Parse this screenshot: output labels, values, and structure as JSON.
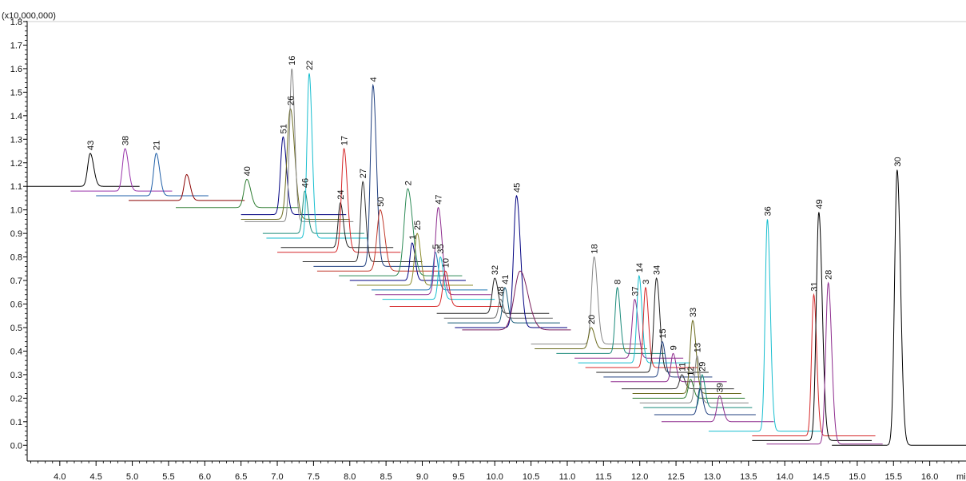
{
  "chart_data": {
    "type": "line",
    "title": "",
    "y_scale_label": "(x10,000,000)",
    "xlabel": "min",
    "ylabel": "",
    "xlim": [
      3.55,
      16.5
    ],
    "ylim": [
      -0.05,
      1.8
    ],
    "x_ticks": [
      4.0,
      4.5,
      5.0,
      5.5,
      6.0,
      6.5,
      7.0,
      7.5,
      8.0,
      8.5,
      9.0,
      9.5,
      10.0,
      10.5,
      11.0,
      11.5,
      12.0,
      12.5,
      13.0,
      13.5,
      14.0,
      14.5,
      15.0,
      15.5,
      16.0
    ],
    "x_tick_labels": [
      "4.0",
      "4.5",
      "5.0",
      "5.5",
      "6.0",
      "6.5",
      "7.0",
      "7.5",
      "8.0",
      "8.5",
      "9.0",
      "9.5",
      "10.0",
      "10.5",
      "11.0",
      "11.5",
      "12.0",
      "12.5",
      "13.0",
      "13.5",
      "14.0",
      "14.5",
      "15.0",
      "15.5",
      "16.0"
    ],
    "y_ticks": [
      0.0,
      0.1,
      0.2,
      0.3,
      0.4,
      0.5,
      0.6,
      0.7,
      0.8,
      0.9,
      1.0,
      1.1,
      1.2,
      1.3,
      1.4,
      1.5,
      1.6,
      1.7,
      1.8
    ],
    "y_tick_labels": [
      "0.0",
      "0.1",
      "0.2",
      "0.3",
      "0.4",
      "0.5",
      "0.6",
      "0.7",
      "0.8",
      "0.9",
      "1.0",
      "1.1",
      "1.2",
      "1.3",
      "1.4",
      "1.5",
      "1.6",
      "1.7",
      "1.8"
    ],
    "grid": false,
    "legend": "none",
    "series": [
      {
        "label": "43",
        "color": "#000000",
        "rt": 4.42,
        "apex": 1.24,
        "baseline": 1.1,
        "x_start": 3.55,
        "x_end": 5.1,
        "width": 0.035
      },
      {
        "label": "38",
        "color": "#9933aa",
        "rt": 4.9,
        "apex": 1.26,
        "baseline": 1.08,
        "x_start": 4.15,
        "x_end": 5.55,
        "width": 0.035
      },
      {
        "label": "21",
        "color": "#1f5fa8",
        "rt": 5.33,
        "apex": 1.24,
        "baseline": 1.06,
        "x_start": 4.5,
        "x_end": 6.05,
        "width": 0.035
      },
      {
        "label": "",
        "color": "#8b0000",
        "rt": 5.75,
        "apex": 1.15,
        "baseline": 1.04,
        "x_start": 4.95,
        "x_end": 6.55,
        "width": 0.035
      },
      {
        "label": "40",
        "color": "#2e7d32",
        "rt": 6.58,
        "apex": 1.13,
        "baseline": 1.01,
        "x_start": 5.6,
        "x_end": 7.3,
        "width": 0.04
      },
      {
        "label": "51",
        "color": "#000080",
        "rt": 7.08,
        "apex": 1.31,
        "baseline": 0.98,
        "x_start": 6.5,
        "x_end": 7.95,
        "width": 0.035
      },
      {
        "label": "26",
        "color": "#6b6b1f",
        "rt": 7.18,
        "apex": 1.43,
        "baseline": 0.96,
        "x_start": 6.5,
        "x_end": 8.0,
        "width": 0.045
      },
      {
        "label": "16",
        "color": "#888888",
        "rt": 7.2,
        "apex": 1.6,
        "baseline": 0.95,
        "x_start": 6.55,
        "x_end": 8.05,
        "width": 0.03
      },
      {
        "label": "46",
        "color": "#1a8a7a",
        "rt": 7.38,
        "apex": 1.08,
        "baseline": 0.9,
        "x_start": 6.8,
        "x_end": 8.2,
        "width": 0.03
      },
      {
        "label": "22",
        "color": "#17becf",
        "rt": 7.44,
        "apex": 1.58,
        "baseline": 0.88,
        "x_start": 6.85,
        "x_end": 8.25,
        "width": 0.03
      },
      {
        "label": "24",
        "color": "#222222",
        "rt": 7.87,
        "apex": 1.03,
        "baseline": 0.84,
        "x_start": 7.05,
        "x_end": 8.6,
        "width": 0.03
      },
      {
        "label": "17",
        "color": "#d62728",
        "rt": 7.92,
        "apex": 1.26,
        "baseline": 0.82,
        "x_start": 7.0,
        "x_end": 8.7,
        "width": 0.035
      },
      {
        "label": "27",
        "color": "#333333",
        "rt": 8.18,
        "apex": 1.12,
        "baseline": 0.78,
        "x_start": 7.35,
        "x_end": 9.0,
        "width": 0.03
      },
      {
        "label": "4",
        "color": "#1f3f7f",
        "rt": 8.32,
        "apex": 1.53,
        "baseline": 0.76,
        "x_start": 7.5,
        "x_end": 9.2,
        "width": 0.035
      },
      {
        "label": "50",
        "color": "#c0392b",
        "rt": 8.42,
        "apex": 1.0,
        "baseline": 0.74,
        "x_start": 7.55,
        "x_end": 9.3,
        "width": 0.045
      },
      {
        "label": "2",
        "color": "#2e8b57",
        "rt": 8.8,
        "apex": 1.09,
        "baseline": 0.72,
        "x_start": 7.85,
        "x_end": 9.55,
        "width": 0.05
      },
      {
        "label": "1",
        "color": "#000080",
        "rt": 8.86,
        "apex": 0.86,
        "baseline": 0.7,
        "x_start": 8.0,
        "x_end": 9.6,
        "width": 0.03
      },
      {
        "label": "25",
        "color": "#8a8a2a",
        "rt": 8.93,
        "apex": 0.9,
        "baseline": 0.68,
        "x_start": 8.1,
        "x_end": 9.7,
        "width": 0.035
      },
      {
        "label": "5",
        "color": "#1f77b4",
        "rt": 9.18,
        "apex": 0.82,
        "baseline": 0.66,
        "x_start": 8.3,
        "x_end": 9.9,
        "width": 0.03
      },
      {
        "label": "47",
        "color": "#8e2c8e",
        "rt": 9.22,
        "apex": 1.01,
        "baseline": 0.64,
        "x_start": 8.35,
        "x_end": 9.95,
        "width": 0.04
      },
      {
        "label": "35",
        "color": "#17becf",
        "rt": 9.25,
        "apex": 0.8,
        "baseline": 0.62,
        "x_start": 8.45,
        "x_end": 10.0,
        "width": 0.03
      },
      {
        "label": "10",
        "color": "#d62728",
        "rt": 9.32,
        "apex": 0.74,
        "baseline": 0.59,
        "x_start": 8.55,
        "x_end": 10.1,
        "width": 0.035
      },
      {
        "label": "32",
        "color": "#222222",
        "rt": 10.0,
        "apex": 0.71,
        "baseline": 0.56,
        "x_start": 9.2,
        "x_end": 10.75,
        "width": 0.035
      },
      {
        "label": "48",
        "color": "#6b6b6b",
        "rt": 10.08,
        "apex": 0.62,
        "baseline": 0.54,
        "x_start": 9.3,
        "x_end": 10.8,
        "width": 0.03
      },
      {
        "label": "41",
        "color": "#1a5c7a",
        "rt": 10.14,
        "apex": 0.67,
        "baseline": 0.52,
        "x_start": 9.35,
        "x_end": 10.9,
        "width": 0.03
      },
      {
        "label": "45",
        "color": "#000080",
        "rt": 10.3,
        "apex": 1.06,
        "baseline": 0.5,
        "x_start": 9.45,
        "x_end": 11.0,
        "width": 0.04
      },
      {
        "label": "",
        "color": "#7a1f5c",
        "rt": 10.35,
        "apex": 0.74,
        "baseline": 0.49,
        "x_start": 9.55,
        "x_end": 11.05,
        "width": 0.08
      },
      {
        "label": "18",
        "color": "#888888",
        "rt": 11.37,
        "apex": 0.8,
        "baseline": 0.43,
        "x_start": 10.5,
        "x_end": 12.05,
        "width": 0.035
      },
      {
        "label": "20",
        "color": "#6b6b1f",
        "rt": 11.33,
        "apex": 0.5,
        "baseline": 0.41,
        "x_start": 10.55,
        "x_end": 12.1,
        "width": 0.035
      },
      {
        "label": "8",
        "color": "#1a8a7a",
        "rt": 11.69,
        "apex": 0.67,
        "baseline": 0.39,
        "x_start": 10.85,
        "x_end": 12.35,
        "width": 0.03
      },
      {
        "label": "37",
        "color": "#8e2c8e",
        "rt": 11.93,
        "apex": 0.62,
        "baseline": 0.37,
        "x_start": 11.1,
        "x_end": 12.6,
        "width": 0.035
      },
      {
        "label": "14",
        "color": "#17becf",
        "rt": 11.99,
        "apex": 0.72,
        "baseline": 0.35,
        "x_start": 11.15,
        "x_end": 12.7,
        "width": 0.03
      },
      {
        "label": "3",
        "color": "#d62728",
        "rt": 12.08,
        "apex": 0.67,
        "baseline": 0.33,
        "x_start": 11.25,
        "x_end": 12.8,
        "width": 0.03
      },
      {
        "label": "34",
        "color": "#222222",
        "rt": 12.23,
        "apex": 0.71,
        "baseline": 0.31,
        "x_start": 11.4,
        "x_end": 12.95,
        "width": 0.035
      },
      {
        "label": "15",
        "color": "#1f3f7f",
        "rt": 12.31,
        "apex": 0.44,
        "baseline": 0.29,
        "x_start": 11.5,
        "x_end": 13.0,
        "width": 0.03
      },
      {
        "label": "9",
        "color": "#8e2c8e",
        "rt": 12.46,
        "apex": 0.39,
        "baseline": 0.27,
        "x_start": 11.6,
        "x_end": 13.2,
        "width": 0.03
      },
      {
        "label": "11",
        "color": "#333333",
        "rt": 12.58,
        "apex": 0.3,
        "baseline": 0.24,
        "x_start": 11.75,
        "x_end": 13.3,
        "width": 0.03
      },
      {
        "label": "33",
        "color": "#6b6b1f",
        "rt": 12.73,
        "apex": 0.53,
        "baseline": 0.22,
        "x_start": 11.9,
        "x_end": 13.4,
        "width": 0.035
      },
      {
        "label": "12",
        "color": "#2e7d32",
        "rt": 12.7,
        "apex": 0.28,
        "baseline": 0.2,
        "x_start": 11.9,
        "x_end": 13.45,
        "width": 0.03
      },
      {
        "label": "13",
        "color": "#888888",
        "rt": 12.79,
        "apex": 0.38,
        "baseline": 0.18,
        "x_start": 12.0,
        "x_end": 13.5,
        "width": 0.03
      },
      {
        "label": "29",
        "color": "#1a8a7a",
        "rt": 12.86,
        "apex": 0.3,
        "baseline": 0.16,
        "x_start": 12.05,
        "x_end": 13.55,
        "width": 0.03
      },
      {
        "label": "",
        "color": "#1f3f7f",
        "rt": 12.83,
        "apex": 0.24,
        "baseline": 0.13,
        "x_start": 12.2,
        "x_end": 13.6,
        "width": 0.03
      },
      {
        "label": "39",
        "color": "#8e2c8e",
        "rt": 13.1,
        "apex": 0.21,
        "baseline": 0.1,
        "x_start": 12.3,
        "x_end": 13.85,
        "width": 0.035
      },
      {
        "label": "36",
        "color": "#17becf",
        "rt": 13.76,
        "apex": 0.96,
        "baseline": 0.06,
        "x_start": 12.95,
        "x_end": 14.5,
        "width": 0.03
      },
      {
        "label": "31",
        "color": "#d62728",
        "rt": 14.4,
        "apex": 0.64,
        "baseline": 0.04,
        "x_start": 13.55,
        "x_end": 15.25,
        "width": 0.03
      },
      {
        "label": "49",
        "color": "#000000",
        "rt": 14.47,
        "apex": 0.99,
        "baseline": 0.02,
        "x_start": 13.55,
        "x_end": 15.2,
        "width": 0.035
      },
      {
        "label": "28",
        "color": "#8e2c8e",
        "rt": 14.6,
        "apex": 0.69,
        "baseline": 0.005,
        "x_start": 13.75,
        "x_end": 15.35,
        "width": 0.035
      },
      {
        "label": "30",
        "color": "#000000",
        "rt": 15.55,
        "apex": 1.17,
        "baseline": 0.0,
        "x_start": 14.65,
        "x_end": 16.5,
        "width": 0.035
      }
    ]
  }
}
